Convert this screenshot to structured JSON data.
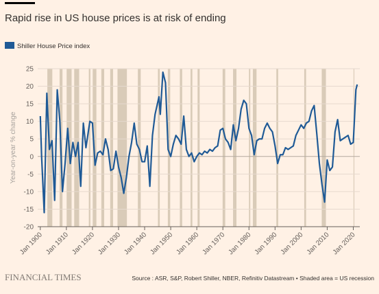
{
  "chart_data": {
    "type": "line",
    "title": "Rapid rise in US house prices is at risk of ending",
    "y_label": "Year-on-year % change",
    "source": "Source : ASR, S&P, Robert Shiller, NBER, Refinitiv Datastream • Shaded area = US recession",
    "brand": "FINANCIAL TIMES",
    "xlim": [
      1899,
      2022.5
    ],
    "ylim": [
      -20,
      25
    ],
    "yticks": [
      -20,
      -15,
      -10,
      -5,
      0,
      5,
      10,
      15,
      20,
      25
    ],
    "xticks": [
      {
        "value": 1900,
        "label": "Jan 1900"
      },
      {
        "value": 1910,
        "label": "Jan 1910"
      },
      {
        "value": 1920,
        "label": "Jan 1920"
      },
      {
        "value": 1930,
        "label": "Jan 1930"
      },
      {
        "value": 1940,
        "label": "Jan 1940"
      },
      {
        "value": 1950,
        "label": "Jan 1950"
      },
      {
        "value": 1960,
        "label": "Jan 1960"
      },
      {
        "value": 1970,
        "label": "Jan 1970"
      },
      {
        "value": 1980,
        "label": "Jan 1980"
      },
      {
        "value": 1990,
        "label": "Jan 1990"
      },
      {
        "value": 2000,
        "label": "Jan 2000"
      },
      {
        "value": 2010,
        "label": "Jan 2010"
      },
      {
        "value": 2020,
        "label": "Jan 2020"
      }
    ],
    "grid": true,
    "recession_color": "#d9cbb8",
    "recessions": [
      [
        1902.7,
        1904.6
      ],
      [
        1907.4,
        1908.5
      ],
      [
        1910.1,
        1912
      ],
      [
        1913,
        1914.9
      ],
      [
        1918.6,
        1919.2
      ],
      [
        1920.1,
        1921.5
      ],
      [
        1923.4,
        1924.5
      ],
      [
        1926.8,
        1927.9
      ],
      [
        1929.6,
        1933.2
      ],
      [
        1937.4,
        1938.5
      ],
      [
        1945.1,
        1945.8
      ],
      [
        1948.9,
        1949.8
      ],
      [
        1953.5,
        1954.4
      ],
      [
        1957.6,
        1958.3
      ],
      [
        1960.3,
        1961.1
      ],
      [
        1969.9,
        1970.9
      ],
      [
        1973.9,
        1975.2
      ],
      [
        1980,
        1980.5
      ],
      [
        1981.5,
        1982.9
      ],
      [
        1990.5,
        1991.2
      ],
      [
        2001.2,
        2001.9
      ],
      [
        2007.9,
        2009.5
      ],
      [
        2020.1,
        2020.4
      ]
    ],
    "series": [
      {
        "name": "Shiller House Price index",
        "color": "#1f5a96",
        "x": [
          1900,
          1900.5,
          1901.5,
          1902.5,
          1903.5,
          1904.5,
          1905.5,
          1906.5,
          1907.5,
          1908.5,
          1909.5,
          1910.5,
          1911.5,
          1912.5,
          1913.5,
          1914.5,
          1915.5,
          1916.5,
          1917.5,
          1919,
          1920,
          1921,
          1922,
          1923,
          1924,
          1925,
          1926,
          1927,
          1928,
          1929,
          1930,
          1931,
          1932,
          1933,
          1934,
          1935,
          1936,
          1937,
          1938,
          1939,
          1940,
          1941,
          1942,
          1943,
          1944,
          1945.5,
          1946,
          1947,
          1948,
          1949,
          1950,
          1951,
          1952,
          1953,
          1954,
          1955,
          1956,
          1957,
          1958,
          1959,
          1960,
          1961,
          1962,
          1963,
          1964,
          1965,
          1966,
          1967,
          1968,
          1969,
          1970,
          1971,
          1972,
          1973,
          1974,
          1975,
          1976,
          1977,
          1978,
          1979,
          1980,
          1981,
          1982,
          1983,
          1984,
          1985,
          1986,
          1987,
          1988,
          1989,
          1990,
          1991,
          1992,
          1993,
          1994,
          1995,
          1996,
          1997,
          1998,
          1999,
          2000,
          2001,
          2002,
          2003,
          2004,
          2005,
          2006,
          2007,
          2008,
          2009,
          2010,
          2011,
          2012,
          2013,
          2014,
          2015,
          2016,
          2017,
          2018,
          2019,
          2020,
          2021,
          2021.5
        ],
        "values": [
          11.5,
          0,
          -16,
          18,
          2,
          4.5,
          -12.5,
          19,
          10,
          -10,
          -2,
          8,
          -2,
          4,
          0,
          4,
          -8.5,
          9.5,
          2.5,
          10,
          9.5,
          -2.5,
          1,
          1.5,
          0.5,
          5,
          2,
          -4,
          -3.5,
          1.5,
          -3,
          -6,
          -10.5,
          -6,
          0,
          4,
          9.5,
          3.5,
          2,
          -1.5,
          -1.5,
          3,
          -8.5,
          6,
          12,
          17,
          12,
          24,
          21,
          2,
          0,
          3.5,
          6,
          5,
          3.5,
          11.5,
          2,
          0,
          1,
          -1.5,
          0,
          1,
          0.5,
          1.5,
          1,
          2,
          1.5,
          2.5,
          3,
          7.5,
          8,
          5,
          4,
          2,
          9,
          4.5,
          8,
          13.5,
          16,
          15,
          8,
          6,
          0.5,
          4.5,
          5,
          5,
          8,
          9.5,
          8,
          7,
          3,
          -2,
          0.5,
          0.5,
          2.5,
          2,
          2.5,
          3,
          6,
          7.5,
          9,
          8,
          9.5,
          10,
          13,
          14.5,
          6.5,
          -2,
          -8,
          -13,
          -1,
          -4,
          -3,
          7,
          10.5,
          4.5,
          5,
          5.5,
          6,
          3.5,
          4,
          19,
          20.5
        ]
      }
    ]
  }
}
